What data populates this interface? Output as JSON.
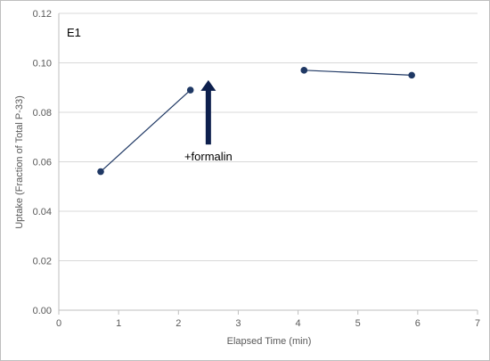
{
  "chart_data": {
    "type": "line",
    "panel_label": "E1",
    "xlabel": "Elapsed Time (min)",
    "ylabel": "Uptake (Fraction of Total P-33)",
    "xlim": [
      0,
      7
    ],
    "ylim": [
      0,
      0.12
    ],
    "x_ticks": [
      "0",
      "1",
      "2",
      "3",
      "4",
      "5",
      "6",
      "7"
    ],
    "y_ticks": [
      "0.00",
      "0.02",
      "0.04",
      "0.06",
      "0.08",
      "0.10",
      "0.12"
    ],
    "grid": "horizontal",
    "segments": [
      {
        "x": [
          0.7,
          2.2
        ],
        "y": [
          0.056,
          0.089
        ]
      },
      {
        "x": [
          4.1,
          5.9
        ],
        "y": [
          0.097,
          0.095
        ]
      }
    ],
    "annotation": {
      "text": "+formalin",
      "x": 2.5,
      "y_from": 0.067,
      "y_to": 0.093
    },
    "colors": {
      "series": "#1f3864",
      "arrow": "#0d1f4d",
      "grid": "#d9d9d9"
    }
  }
}
